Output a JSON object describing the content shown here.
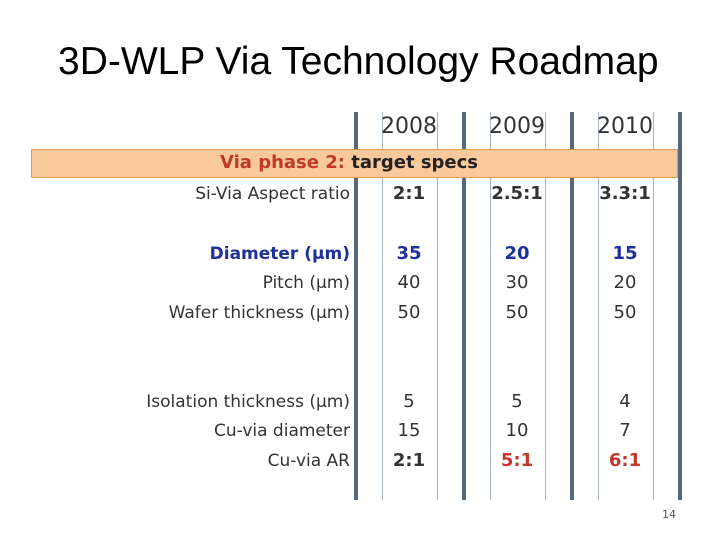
{
  "slide": {
    "title": "3D-WLP Via Technology Roadmap",
    "page_number": "14"
  },
  "table": {
    "years": [
      "2008",
      "2009",
      "2010"
    ],
    "band": {
      "label_prefix": "Via phase 2:",
      "label_suffix": " target specs"
    },
    "rows": [
      {
        "label": "Si-Via Aspect ratio",
        "values": [
          "2:1",
          "2.5:1",
          "3.3:1"
        ]
      },
      {
        "label": "Diameter (μm)",
        "values": [
          "35",
          "20",
          "15"
        ]
      },
      {
        "label": "Pitch (μm)",
        "values": [
          "40",
          "30",
          "20"
        ]
      },
      {
        "label": "Wafer thickness (μm)",
        "values": [
          "50",
          "50",
          "50"
        ]
      },
      {
        "label": "Isolation thickness (μm)",
        "values": [
          "5",
          "5",
          "4"
        ]
      },
      {
        "label": "Cu-via diameter",
        "values": [
          "15",
          "10",
          "7"
        ]
      },
      {
        "label": "Cu-via AR",
        "values": [
          "2:1",
          "5:1",
          "6:1"
        ]
      }
    ]
  },
  "colors": {
    "divider": "#53697e",
    "band": "#f9c99c",
    "highlight_blue": "#1f2f9c",
    "highlight_red": "#c0392b"
  }
}
